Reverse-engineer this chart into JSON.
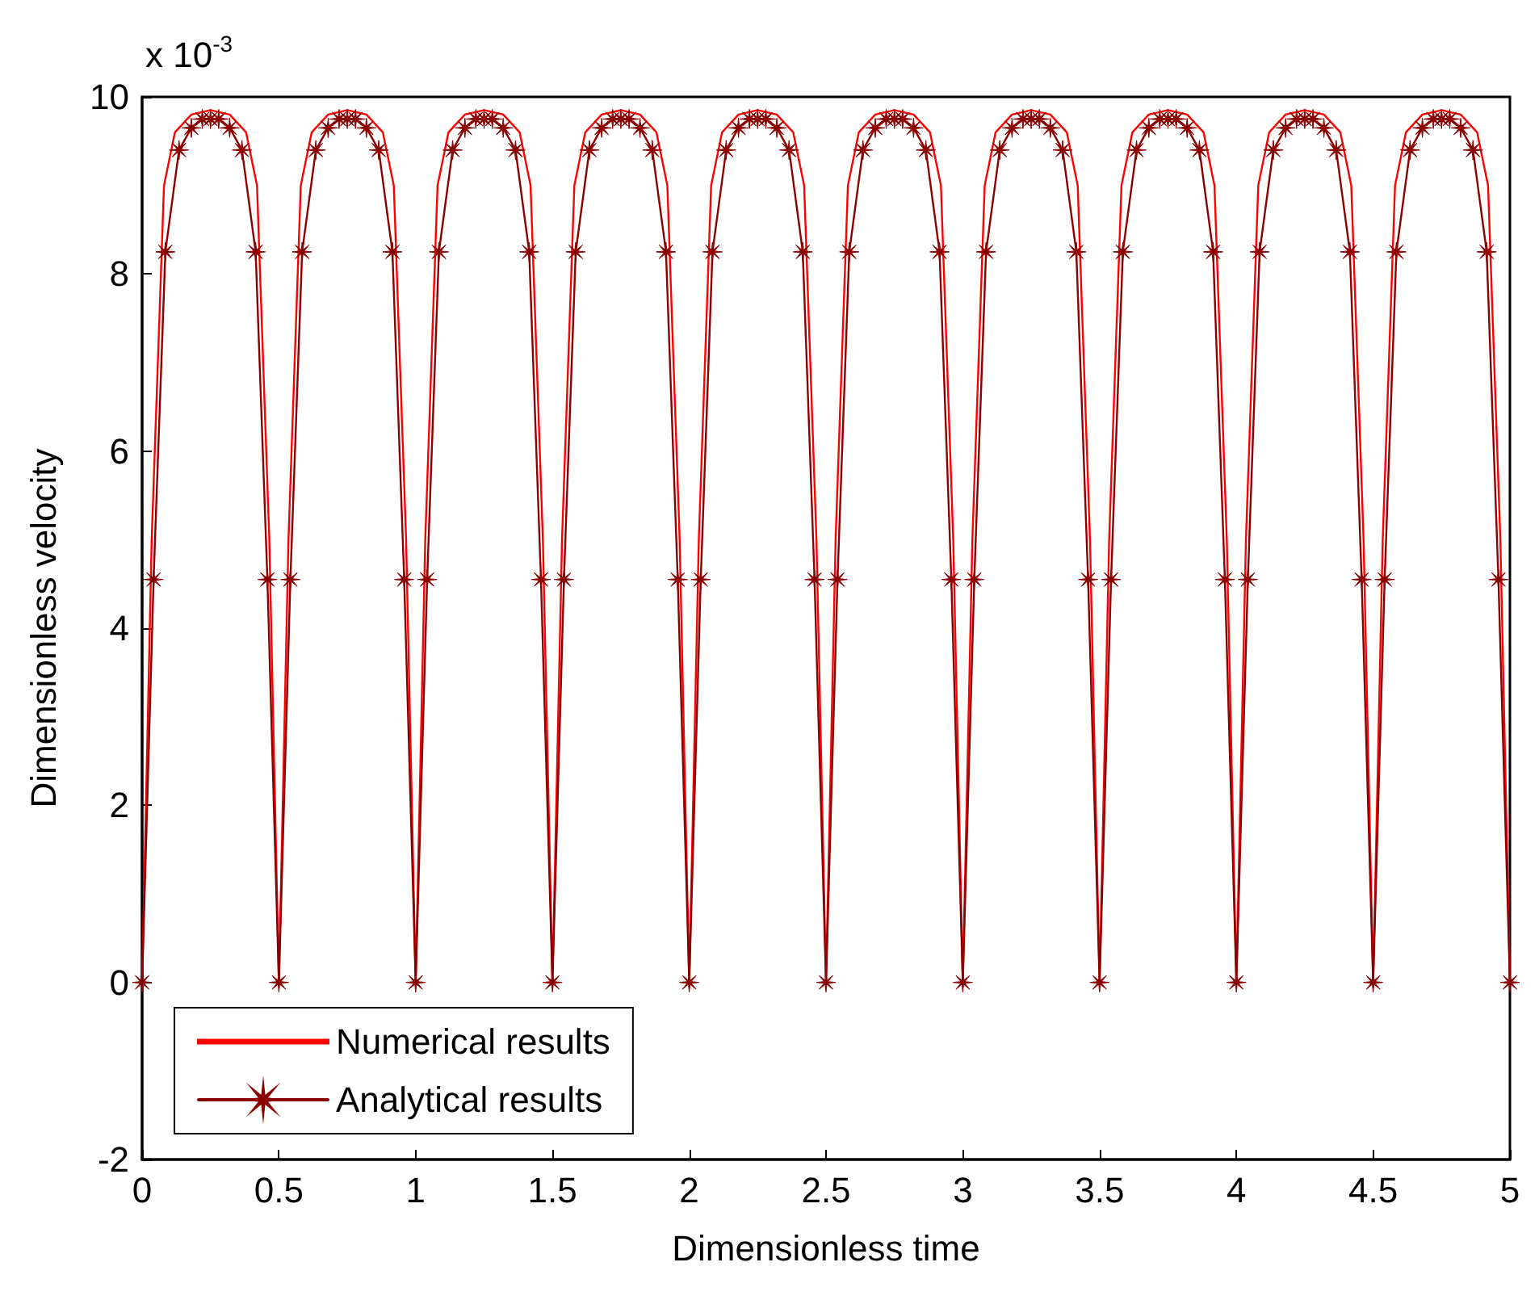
{
  "chart_data": {
    "type": "line",
    "xlabel": "Dimensionless time",
    "ylabel": "Dimensionless velocity",
    "annotations": [
      "x 10$^{-3}$"
    ],
    "xlim": [
      0,
      5
    ],
    "xticks": [
      0,
      0.5,
      1,
      1.5,
      2,
      2.5,
      3,
      3.5,
      4,
      4.5,
      5
    ],
    "ylim": [
      -2,
      10
    ],
    "yticks": [
      -2,
      0,
      2,
      4,
      6,
      8,
      10
    ],
    "grid": false,
    "legend": "bottom left",
    "series": [
      {
        "name": "Numerical results",
        "color": "#ff0000",
        "marker": "none",
        "x": [
          0,
          0.035,
          0.08,
          0.12,
          0.18,
          0.25,
          0.32,
          0.38,
          0.42,
          0.465,
          0.5,
          0.535,
          0.58,
          0.62,
          0.68,
          0.75,
          0.82,
          0.88,
          0.92,
          0.965,
          1,
          1.035,
          1.08,
          1.12,
          1.18,
          1.25,
          1.32,
          1.38,
          1.42,
          1.465,
          1.5,
          1.535,
          1.58,
          1.62,
          1.68,
          1.75,
          1.82,
          1.88,
          1.92,
          1.965,
          2,
          2.035,
          2.08,
          2.12,
          2.18,
          2.25,
          2.32,
          2.38,
          2.42,
          2.465,
          2.5,
          2.535,
          2.58,
          2.62,
          2.68,
          2.75,
          2.82,
          2.88,
          2.92,
          2.965,
          3,
          3.035,
          3.08,
          3.12,
          3.18,
          3.25,
          3.32,
          3.38,
          3.42,
          3.465,
          3.5,
          3.535,
          3.58,
          3.62,
          3.68,
          3.75,
          3.82,
          3.88,
          3.92,
          3.965,
          4,
          4.035,
          4.08,
          4.12,
          4.18,
          4.25,
          4.32,
          4.38,
          4.42,
          4.465,
          4.5,
          4.535,
          4.58,
          4.62,
          4.68,
          4.75,
          4.82,
          4.88,
          4.92,
          4.965,
          5
        ],
        "values": [
          0,
          5,
          9,
          9.6,
          9.8,
          9.85,
          9.8,
          9.6,
          9,
          5,
          0,
          5,
          9,
          9.6,
          9.8,
          9.85,
          9.8,
          9.6,
          9,
          5,
          0,
          5,
          9,
          9.6,
          9.8,
          9.85,
          9.8,
          9.6,
          9,
          5,
          0,
          5,
          9,
          9.6,
          9.8,
          9.85,
          9.8,
          9.6,
          9,
          5,
          0,
          5,
          9,
          9.6,
          9.8,
          9.85,
          9.8,
          9.6,
          9,
          5,
          0,
          5,
          9,
          9.6,
          9.8,
          9.85,
          9.8,
          9.6,
          9,
          5,
          0,
          5,
          9,
          9.6,
          9.8,
          9.85,
          9.8,
          9.6,
          9,
          5,
          0,
          5,
          9,
          9.6,
          9.8,
          9.85,
          9.8,
          9.6,
          9,
          5,
          0,
          5,
          9,
          9.6,
          9.8,
          9.85,
          9.8,
          9.6,
          9,
          5,
          0,
          5,
          9,
          9.6,
          9.8,
          9.85,
          9.8,
          9.6,
          9,
          5,
          0
        ]
      },
      {
        "name": "Analytical results",
        "color": "#8b0000",
        "marker": "star",
        "x": [
          0,
          0.042,
          0.085,
          0.135,
          0.18,
          0.22,
          0.25,
          0.28,
          0.32,
          0.365,
          0.415,
          0.458,
          0.5,
          0.542,
          0.585,
          0.635,
          0.68,
          0.72,
          0.75,
          0.78,
          0.82,
          0.865,
          0.915,
          0.958,
          1,
          1.042,
          1.085,
          1.135,
          1.18,
          1.22,
          1.25,
          1.28,
          1.32,
          1.365,
          1.415,
          1.458,
          1.5,
          1.542,
          1.585,
          1.635,
          1.68,
          1.72,
          1.75,
          1.78,
          1.82,
          1.865,
          1.915,
          1.958,
          2,
          2.042,
          2.085,
          2.135,
          2.18,
          2.22,
          2.25,
          2.28,
          2.32,
          2.365,
          2.415,
          2.458,
          2.5,
          2.542,
          2.585,
          2.635,
          2.68,
          2.72,
          2.75,
          2.78,
          2.82,
          2.865,
          2.915,
          2.958,
          3,
          3.042,
          3.085,
          3.135,
          3.18,
          3.22,
          3.25,
          3.28,
          3.32,
          3.365,
          3.415,
          3.458,
          3.5,
          3.542,
          3.585,
          3.635,
          3.68,
          3.72,
          3.75,
          3.78,
          3.82,
          3.865,
          3.915,
          3.958,
          4,
          4.042,
          4.085,
          4.135,
          4.18,
          4.22,
          4.25,
          4.28,
          4.32,
          4.365,
          4.415,
          4.458,
          4.5,
          4.542,
          4.585,
          4.635,
          4.68,
          4.72,
          4.75,
          4.78,
          4.82,
          4.865,
          4.915,
          4.958,
          5
        ],
        "values": [
          0,
          4.55,
          8.25,
          9.4,
          9.65,
          9.75,
          9.75,
          9.75,
          9.65,
          9.4,
          8.25,
          4.55,
          0,
          4.55,
          8.25,
          9.4,
          9.65,
          9.75,
          9.75,
          9.75,
          9.65,
          9.4,
          8.25,
          4.55,
          0,
          4.55,
          8.25,
          9.4,
          9.65,
          9.75,
          9.75,
          9.75,
          9.65,
          9.4,
          8.25,
          4.55,
          0,
          4.55,
          8.25,
          9.4,
          9.65,
          9.75,
          9.75,
          9.75,
          9.65,
          9.4,
          8.25,
          4.55,
          0,
          4.55,
          8.25,
          9.4,
          9.65,
          9.75,
          9.75,
          9.75,
          9.65,
          9.4,
          8.25,
          4.55,
          0,
          4.55,
          8.25,
          9.4,
          9.65,
          9.75,
          9.75,
          9.75,
          9.65,
          9.4,
          8.25,
          4.55,
          0,
          4.55,
          8.25,
          9.4,
          9.65,
          9.75,
          9.75,
          9.75,
          9.65,
          9.4,
          8.25,
          4.55,
          0,
          4.55,
          8.25,
          9.4,
          9.65,
          9.75,
          9.75,
          9.75,
          9.65,
          9.4,
          8.25,
          4.55,
          0,
          4.55,
          8.25,
          9.4,
          9.65,
          9.75,
          9.75,
          9.75,
          9.65,
          9.4,
          8.25,
          4.55,
          0,
          4.55,
          8.25,
          9.4,
          9.65,
          9.75,
          9.75,
          9.75,
          9.65,
          9.4,
          8.25,
          4.55,
          0
        ]
      }
    ]
  }
}
